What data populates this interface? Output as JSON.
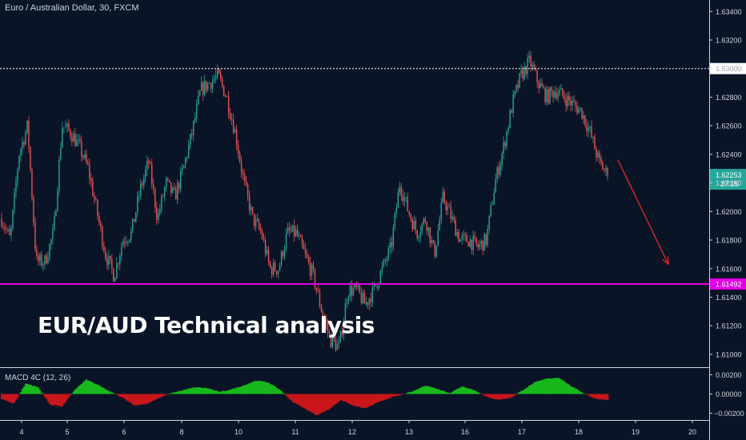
{
  "header": {
    "title": "Euro / Australian Dollar, 30, FXCM"
  },
  "overlay": {
    "text": "EUR/AUD Technical analysis"
  },
  "macd": {
    "label": "MACD 4C (12, 26)",
    "y_ticks": [
      "0.00200",
      "0.00000",
      "−0.00200"
    ],
    "y_tick_values": [
      0.002,
      0.0,
      -0.002
    ],
    "ylim": [
      -0.0027,
      0.0027
    ]
  },
  "colors": {
    "background": "#0a1427",
    "candle_up": "#26a69a",
    "candle_down": "#ef5350",
    "support": "#e100e6",
    "resistance": "#ffffff",
    "arrow": "#e02a2a",
    "price_label_bg": "#26a69a",
    "macd_pos": "#18b91c",
    "macd_neg": "#c8161b"
  },
  "chart_data": {
    "type": "candlestick",
    "x_ticks": [
      "4",
      "5",
      "6",
      "7",
      "8",
      "9",
      "10",
      "11",
      "12",
      "13",
      "16",
      "17",
      "18",
      "19",
      "20"
    ],
    "y_ticks": [
      "1.63400",
      "1.63200",
      "1.63000",
      "1.62800",
      "1.62600",
      "1.62400",
      "1.62200",
      "1.62000",
      "1.61800",
      "1.61600",
      "1.61400",
      "1.61200",
      "1.61000"
    ],
    "y_tick_values": [
      1.634,
      1.632,
      1.63,
      1.628,
      1.626,
      1.624,
      1.622,
      1.62,
      1.618,
      1.616,
      1.614,
      1.612,
      1.61
    ],
    "ylim": [
      1.6091,
      1.6348
    ],
    "price_path": [
      1.6195,
      1.618,
      1.624,
      1.626,
      1.6165,
      1.6165,
      1.6185,
      1.626,
      1.6255,
      1.6245,
      1.623,
      1.62,
      1.617,
      1.6155,
      1.618,
      1.6185,
      1.6215,
      1.6235,
      1.6195,
      1.622,
      1.621,
      1.623,
      1.6255,
      1.6285,
      1.629,
      1.6295,
      1.628,
      1.6255,
      1.622,
      1.6195,
      1.6185,
      1.616,
      1.616,
      1.6185,
      1.6185,
      1.617,
      1.6155,
      1.613,
      1.611,
      1.6105,
      1.6145,
      1.6145,
      1.6135,
      1.6145,
      1.616,
      1.6175,
      1.622,
      1.62,
      1.6185,
      1.6195,
      1.617,
      1.621,
      1.6195,
      1.618,
      1.618,
      1.6175,
      1.618,
      1.622,
      1.6245,
      1.6275,
      1.6295,
      1.6305,
      1.629,
      1.628,
      1.6285,
      1.628,
      1.6275,
      1.627,
      1.6255,
      1.6235,
      1.62253
    ],
    "last_price": "1.62253",
    "countdown": "27:15",
    "resistance": {
      "value": 1.63,
      "label": "1.63000"
    },
    "support": {
      "value": 1.61492,
      "label": "1.61492"
    },
    "forecast_arrow": {
      "from": {
        "x": "18.6",
        "y": 1.6236
      },
      "to": {
        "x": "19.6",
        "y": 1.6163
      }
    },
    "macd_hist_path": [
      -0.0005,
      -0.001,
      0.0011,
      0.0007,
      -0.0011,
      -0.0013,
      0.0004,
      0.0015,
      0.0009,
      0.0002,
      -0.0004,
      -0.0012,
      -0.001,
      -0.0004,
      0.0001,
      0.0004,
      0.0007,
      0.0006,
      0.0002,
      0.0005,
      0.0009,
      0.0014,
      0.0012,
      0.0004,
      -0.0008,
      -0.0015,
      -0.0022,
      -0.0016,
      -0.0006,
      -0.0012,
      -0.0015,
      -0.0009,
      -0.0004,
      -0.0001,
      0.0003,
      0.0009,
      0.0005,
      0.0001,
      0.0008,
      0.0004,
      -0.0003,
      -0.0006,
      -0.0004,
      0.0004,
      0.0012,
      0.0016,
      0.0017,
      0.0008,
      0.0001,
      -0.0005,
      -0.0006
    ]
  }
}
